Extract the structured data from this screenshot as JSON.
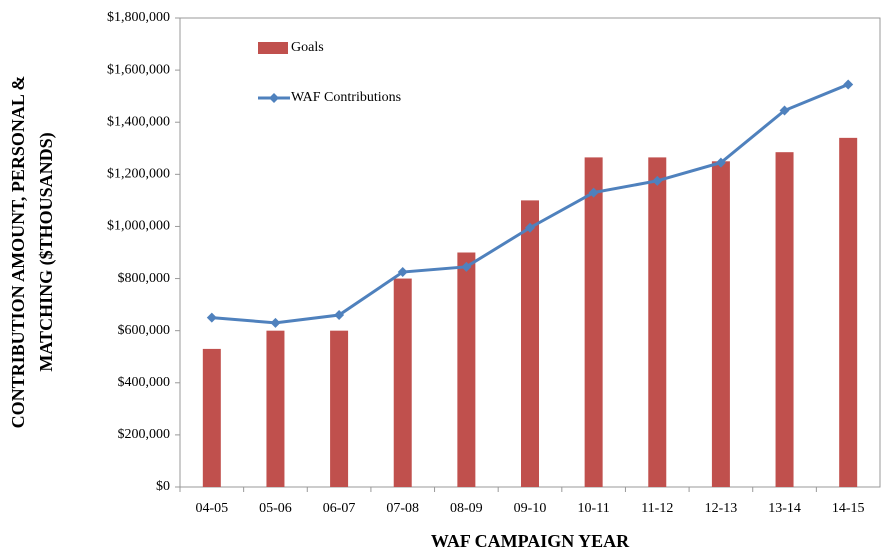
{
  "chart_data": {
    "type": "bar",
    "xlabel": "WAF CAMPAIGN YEAR",
    "ylabel": [
      "CONTRIBUTION AMOUNT, PERSONAL &",
      "MATCHING ($THOUSANDS)"
    ],
    "categories": [
      "04-05",
      "05-06",
      "06-07",
      "07-08",
      "08-09",
      "09-10",
      "10-11",
      "11-12",
      "12-13",
      "13-14",
      "14-15"
    ],
    "series": [
      {
        "name": "Goals",
        "type": "bar",
        "color": "#c0504d",
        "values": [
          530000,
          600000,
          600000,
          800000,
          900000,
          1100000,
          1265000,
          1265000,
          1250000,
          1285000,
          1340000
        ]
      },
      {
        "name": "WAF Contributions",
        "type": "line",
        "color": "#4f81bd",
        "values": [
          650000,
          630000,
          660000,
          825000,
          845000,
          995000,
          1130000,
          1175000,
          1245000,
          1445000,
          1545000
        ]
      }
    ],
    "ylim": [
      0,
      1800000
    ],
    "yticks": [
      {
        "value": 0,
        "label": "$0"
      },
      {
        "value": 200000,
        "label": "$200,000"
      },
      {
        "value": 400000,
        "label": "$400,000"
      },
      {
        "value": 600000,
        "label": "$600,000"
      },
      {
        "value": 800000,
        "label": "$800,000"
      },
      {
        "value": 1000000,
        "label": "$1,000,000"
      },
      {
        "value": 1200000,
        "label": "$1,200,000"
      },
      {
        "value": 1400000,
        "label": "$1,400,000"
      },
      {
        "value": 1600000,
        "label": "$1,600,000"
      },
      {
        "value": 1800000,
        "label": "$1,800,000"
      }
    ],
    "grid": false,
    "legend": "upper left"
  }
}
